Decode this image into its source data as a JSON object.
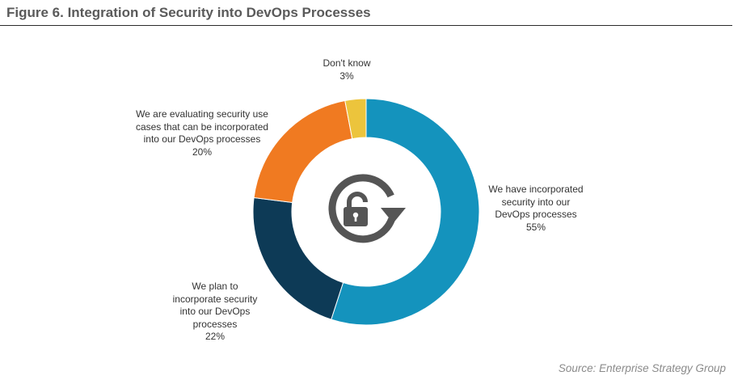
{
  "figure": {
    "title": "Figure 6.  Integration of Security into DevOps Processes",
    "source": "Source: Enterprise Strategy Group"
  },
  "center_icon": "unlock-rotate-icon",
  "chart_data": {
    "type": "pie",
    "donut": true,
    "title": "Figure 6.  Integration of Security into DevOps Processes",
    "slices": [
      {
        "label_lines": [
          "We have incorporated",
          "security into our",
          "DevOps processes"
        ],
        "value": 55,
        "value_label": "55%",
        "color": "#1493bd"
      },
      {
        "label_lines": [
          "We plan to",
          "incorporate security",
          "into our DevOps",
          "processes"
        ],
        "value": 22,
        "value_label": "22%",
        "color": "#0d3a56"
      },
      {
        "label_lines": [
          "We are evaluating security use",
          "cases that can be incorporated",
          "into our DevOps processes"
        ],
        "value": 20,
        "value_label": "20%",
        "color": "#f07a21"
      },
      {
        "label_lines": [
          "Don't know"
        ],
        "value": 3,
        "value_label": "3%",
        "color": "#ecc43c"
      }
    ],
    "legend": "none",
    "source": "Source: Enterprise Strategy Group"
  }
}
